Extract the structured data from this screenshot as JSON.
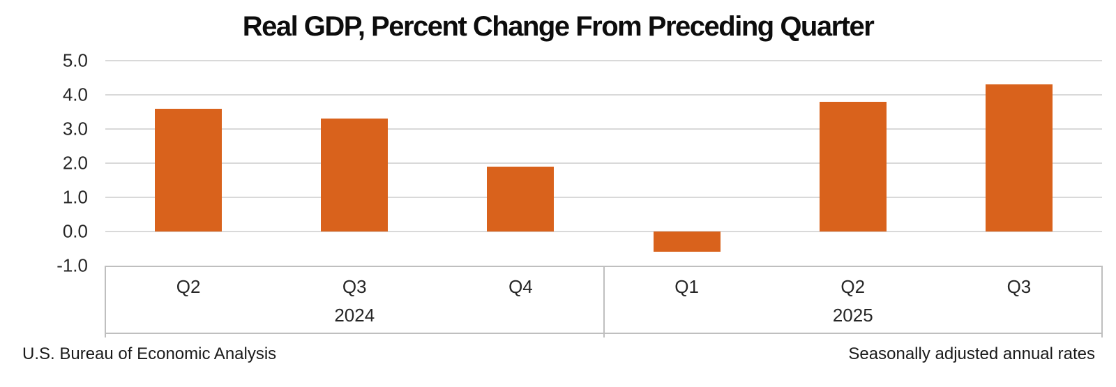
{
  "chart_data": {
    "type": "bar",
    "title": "Real GDP, Percent Change From Preceding Quarter",
    "ylabel": "",
    "xlabel": "",
    "ylim": [
      -1.0,
      5.0
    ],
    "grid": true,
    "legend": "none",
    "bar_color": "#d9621c",
    "gridline_color": "#d9d9d9",
    "axis_box_color": "#bfbfbf",
    "y_ticks": [
      {
        "label": "5.0",
        "value": 5.0
      },
      {
        "label": "4.0",
        "value": 4.0
      },
      {
        "label": "3.0",
        "value": 3.0
      },
      {
        "label": "2.0",
        "value": 2.0
      },
      {
        "label": "1.0",
        "value": 1.0
      },
      {
        "label": "0.0",
        "value": 0.0
      },
      {
        "label": "-1.0",
        "value": -1.0
      }
    ],
    "groups": [
      {
        "year": "2024",
        "quarters": [
          "Q2",
          "Q3",
          "Q4"
        ]
      },
      {
        "year": "2025",
        "quarters": [
          "Q1",
          "Q2",
          "Q3"
        ]
      }
    ],
    "categories": [
      "Q2 2024",
      "Q3 2024",
      "Q4 2024",
      "Q1 2025",
      "Q2 2025",
      "Q3 2025"
    ],
    "series": [
      {
        "name": "Real GDP percent change",
        "values": [
          3.6,
          3.3,
          1.9,
          -0.6,
          3.8,
          4.3
        ]
      }
    ],
    "footer_left": "U.S. Bureau of Economic Analysis",
    "footer_right": "Seasonally adjusted annual rates"
  }
}
